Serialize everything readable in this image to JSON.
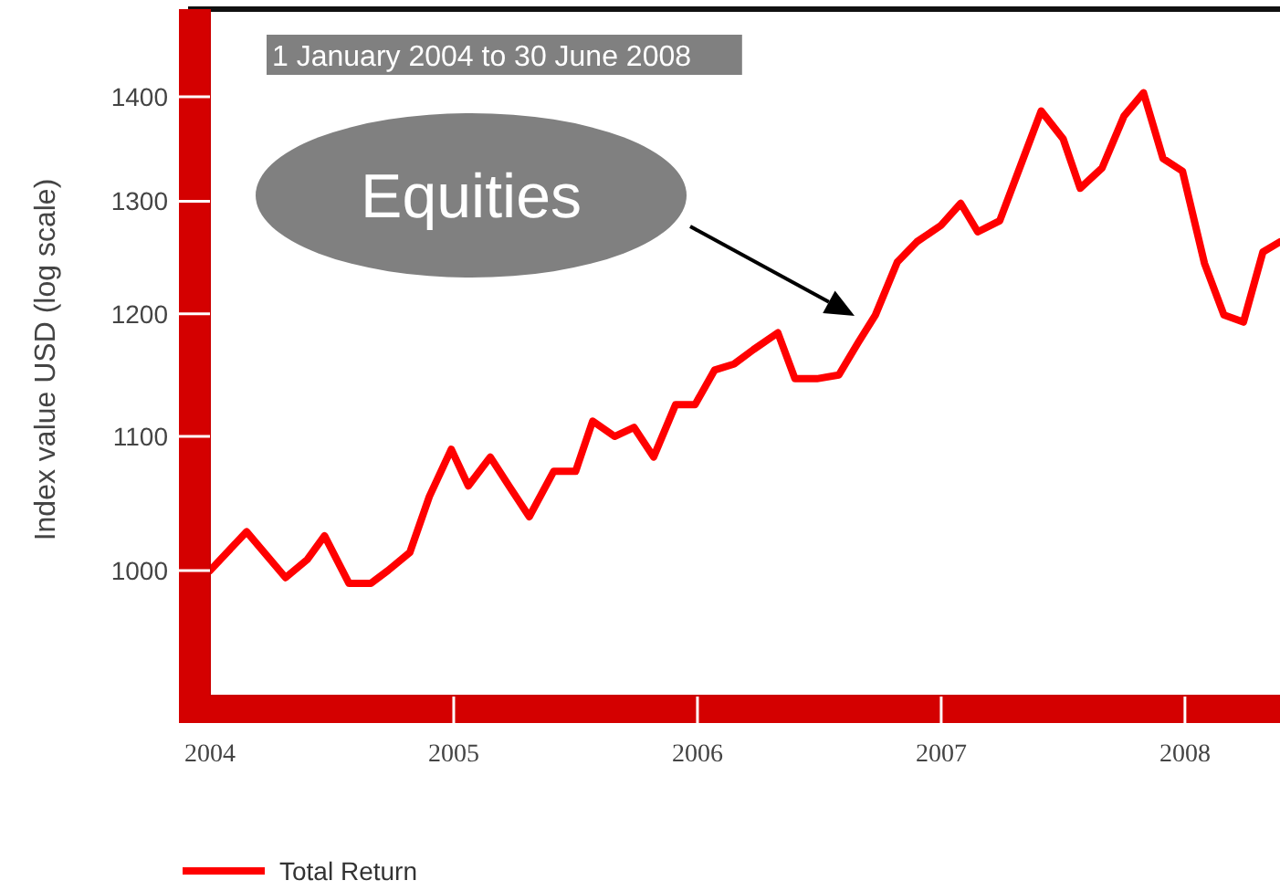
{
  "chart_data": {
    "type": "line",
    "subtitle": "1 January 2004  to 30 June 2008",
    "ylabel": "Index value  USD (log scale)",
    "log": true,
    "grid": false,
    "legend": "bottom",
    "marker": "none",
    "line_style": "solid",
    "xlim": [
      2004,
      2008.39
    ],
    "xticks": [
      2004,
      2005,
      2006,
      2007,
      2008
    ],
    "ylim": [
      915,
      1490
    ],
    "yticks": [
      1000,
      1100,
      1200,
      1300,
      1400
    ],
    "annotations": [
      "Equities"
    ],
    "series": [
      {
        "name": "Total Return",
        "color": "#ff0000",
        "x": [
          2004.0,
          2004.15,
          2004.31,
          2004.4,
          2004.47,
          2004.57,
          2004.66,
          2004.73,
          2004.82,
          2004.9,
          2004.99,
          2005.06,
          2005.15,
          2005.23,
          2005.31,
          2005.41,
          2005.5,
          2005.57,
          2005.66,
          2005.74,
          2005.82,
          2005.91,
          2005.99,
          2006.07,
          2006.15,
          2006.23,
          2006.33,
          2006.4,
          2006.49,
          2006.58,
          2006.66,
          2006.73,
          2006.82,
          2006.9,
          2007.0,
          2007.08,
          2007.15,
          2007.24,
          2007.33,
          2007.41,
          2007.5,
          2007.57,
          2007.66,
          2007.75,
          2007.83,
          2007.91,
          2007.99,
          2008.08,
          2008.16,
          2008.24,
          2008.32,
          2008.39
        ],
        "values": [
          1000,
          1028,
          995,
          1008,
          1025,
          991,
          991,
          1000,
          1013,
          1054,
          1090,
          1062,
          1084,
          1061,
          1039,
          1073,
          1073,
          1112,
          1100,
          1107,
          1084,
          1125,
          1125,
          1153,
          1158,
          1170,
          1184,
          1146,
          1146,
          1149,
          1176,
          1199,
          1245,
          1263,
          1278,
          1298,
          1272,
          1282,
          1336,
          1386,
          1359,
          1312,
          1331,
          1381,
          1404,
          1340,
          1328,
          1244,
          1199,
          1193,
          1254,
          1263
        ]
      }
    ]
  }
}
